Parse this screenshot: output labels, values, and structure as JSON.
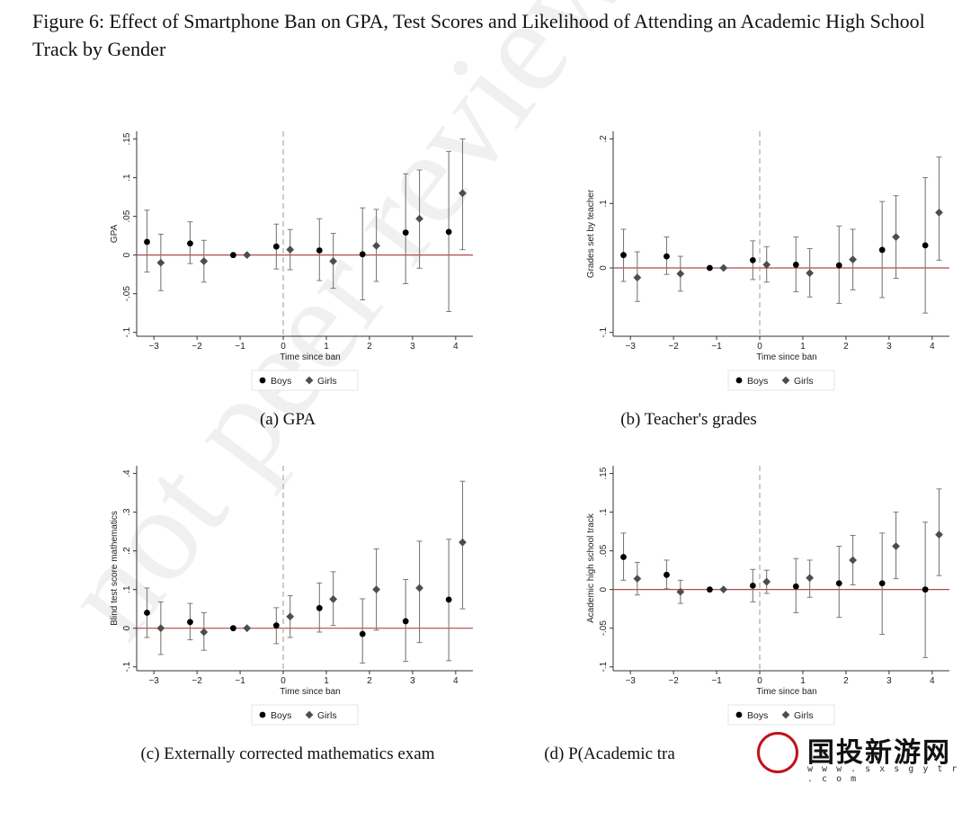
{
  "figure_title": "Figure 6: Effect of Smartphone Ban on GPA, Test Scores and Likelihood of Attending an Academic High School Track by Gender",
  "watermark": "not peer review",
  "logo": {
    "text": "国投新游网",
    "url": "w w w . s x s g y t r . c o m"
  },
  "colors": {
    "boys": "#000000",
    "girls": "#4d4d4d",
    "ci": "#7a7a7a",
    "zero_line": "#b04a4a",
    "ban_line": "#aaaaaa"
  },
  "chart_data": [
    {
      "type": "scatter",
      "caption": "(a) GPA",
      "xlabel": "Time since ban",
      "ylabel": "GPA",
      "xlim": [
        -3.4,
        4.4
      ],
      "ylim": [
        -0.1,
        0.15
      ],
      "xticks": [
        -3,
        -2,
        -1,
        0,
        1,
        2,
        3,
        4
      ],
      "yticks": [
        -0.1,
        -0.05,
        0,
        0.05,
        0.1,
        0.15
      ],
      "ytick_labels": [
        "-.1",
        "-.05",
        "0",
        ".05",
        ".1",
        ".15"
      ],
      "legend": [
        "Boys",
        "Girls"
      ],
      "series": [
        {
          "name": "Boys",
          "marker": "circle",
          "x": [
            -3,
            -2,
            -1,
            0,
            1,
            2,
            3,
            4
          ],
          "y": [
            0.017,
            0.015,
            0.0,
            0.011,
            0.006,
            0.001,
            0.029,
            0.03
          ],
          "lo": [
            -0.022,
            -0.011,
            0.0,
            -0.018,
            -0.033,
            -0.058,
            -0.037,
            -0.073
          ],
          "hi": [
            0.058,
            0.043,
            0.0,
            0.04,
            0.047,
            0.061,
            0.105,
            0.134
          ]
        },
        {
          "name": "Girls",
          "marker": "diamond",
          "x": [
            -3,
            -2,
            -1,
            0,
            1,
            2,
            3,
            4
          ],
          "y": [
            -0.01,
            -0.008,
            0.0,
            0.007,
            -0.008,
            0.012,
            0.047,
            0.08
          ],
          "lo": [
            -0.046,
            -0.035,
            0.0,
            -0.019,
            -0.043,
            -0.034,
            -0.017,
            0.007
          ],
          "hi": [
            0.027,
            0.019,
            0.0,
            0.033,
            0.028,
            0.059,
            0.11,
            0.15
          ]
        }
      ]
    },
    {
      "type": "scatter",
      "caption": "(b) Teacher's grades",
      "xlabel": "Time since ban",
      "ylabel": "Grades set by teacher",
      "xlim": [
        -3.4,
        4.4
      ],
      "ylim": [
        -0.1,
        0.2
      ],
      "xticks": [
        -3,
        -2,
        -1,
        0,
        1,
        2,
        3,
        4
      ],
      "yticks": [
        -0.1,
        0,
        0.1,
        0.2
      ],
      "ytick_labels": [
        "-.1",
        "0",
        ".1",
        ".2"
      ],
      "legend": [
        "Boys",
        "Girls"
      ],
      "series": [
        {
          "name": "Boys",
          "marker": "circle",
          "x": [
            -3,
            -2,
            -1,
            0,
            1,
            2,
            3,
            4
          ],
          "y": [
            0.02,
            0.018,
            0.0,
            0.012,
            0.005,
            0.004,
            0.028,
            0.035
          ],
          "lo": [
            -0.021,
            -0.01,
            0.0,
            -0.018,
            -0.037,
            -0.055,
            -0.046,
            -0.07
          ],
          "hi": [
            0.06,
            0.048,
            0.0,
            0.042,
            0.048,
            0.065,
            0.103,
            0.14
          ]
        },
        {
          "name": "Girls",
          "marker": "diamond",
          "x": [
            -3,
            -2,
            -1,
            0,
            1,
            2,
            3,
            4
          ],
          "y": [
            -0.015,
            -0.009,
            0.0,
            0.005,
            -0.008,
            0.013,
            0.048,
            0.086
          ],
          "lo": [
            -0.052,
            -0.036,
            0.0,
            -0.022,
            -0.045,
            -0.034,
            -0.016,
            0.012
          ],
          "hi": [
            0.025,
            0.018,
            0.0,
            0.033,
            0.03,
            0.06,
            0.112,
            0.172
          ]
        }
      ]
    },
    {
      "type": "scatter",
      "caption": "(c) Externally corrected mathematics exam",
      "xlabel": "Time since ban",
      "ylabel": "Blind test score mathematics",
      "xlim": [
        -3.4,
        4.4
      ],
      "ylim": [
        -0.1,
        0.4
      ],
      "xticks": [
        -3,
        -2,
        -1,
        0,
        1,
        2,
        3,
        4
      ],
      "yticks": [
        -0.1,
        0,
        0.1,
        0.2,
        0.3,
        0.4
      ],
      "ytick_labels": [
        "-.1",
        "0",
        ".1",
        ".2",
        ".3",
        ".4"
      ],
      "legend": [
        "Boys",
        "Girls"
      ],
      "series": [
        {
          "name": "Boys",
          "marker": "circle",
          "x": [
            -3,
            -2,
            -1,
            0,
            1,
            2,
            3,
            4
          ],
          "y": [
            0.04,
            0.016,
            0.0,
            0.007,
            0.052,
            -0.015,
            0.018,
            0.074
          ],
          "lo": [
            -0.024,
            -0.03,
            0.0,
            -0.04,
            -0.01,
            -0.09,
            -0.086,
            -0.084
          ],
          "hi": [
            0.104,
            0.064,
            0.0,
            0.053,
            0.117,
            0.076,
            0.126,
            0.23
          ]
        },
        {
          "name": "Girls",
          "marker": "diamond",
          "x": [
            -3,
            -2,
            -1,
            0,
            1,
            2,
            3,
            4
          ],
          "y": [
            0.0,
            -0.01,
            0.0,
            0.03,
            0.075,
            0.1,
            0.104,
            0.222
          ],
          "lo": [
            -0.068,
            -0.057,
            0.0,
            -0.024,
            0.007,
            -0.005,
            -0.037,
            0.05
          ],
          "hi": [
            0.068,
            0.04,
            0.0,
            0.084,
            0.146,
            0.205,
            0.225,
            0.38
          ]
        }
      ]
    },
    {
      "type": "scatter",
      "caption": "(d) P(Academic tra",
      "xlabel": "Time since ban",
      "ylabel": "Academic high school track",
      "xlim": [
        -3.4,
        4.4
      ],
      "ylim": [
        -0.1,
        0.15
      ],
      "xticks": [
        -3,
        -2,
        -1,
        0,
        1,
        2,
        3,
        4
      ],
      "yticks": [
        -0.1,
        -0.05,
        0,
        0.05,
        0.1,
        0.15
      ],
      "ytick_labels": [
        "-.1",
        "-.05",
        "0",
        ".05",
        ".1",
        ".15"
      ],
      "legend": [
        "Boys",
        "Girls"
      ],
      "series": [
        {
          "name": "Boys",
          "marker": "circle",
          "x": [
            -3,
            -2,
            -1,
            0,
            1,
            2,
            3,
            4
          ],
          "y": [
            0.042,
            0.019,
            0.0,
            0.005,
            0.004,
            0.008,
            0.008,
            0.0
          ],
          "lo": [
            0.012,
            0.001,
            0.0,
            -0.016,
            -0.03,
            -0.036,
            -0.058,
            -0.088
          ],
          "hi": [
            0.073,
            0.038,
            0.0,
            0.026,
            0.04,
            0.056,
            0.073,
            0.087
          ]
        },
        {
          "name": "Girls",
          "marker": "diamond",
          "x": [
            -3,
            -2,
            -1,
            0,
            1,
            2,
            3,
            4
          ],
          "y": [
            0.014,
            -0.003,
            0.0,
            0.01,
            0.015,
            0.038,
            0.056,
            0.071
          ],
          "lo": [
            -0.007,
            -0.018,
            0.0,
            -0.005,
            -0.01,
            0.006,
            0.014,
            0.018
          ],
          "hi": [
            0.035,
            0.012,
            0.0,
            0.025,
            0.038,
            0.07,
            0.1,
            0.13
          ]
        }
      ]
    }
  ]
}
